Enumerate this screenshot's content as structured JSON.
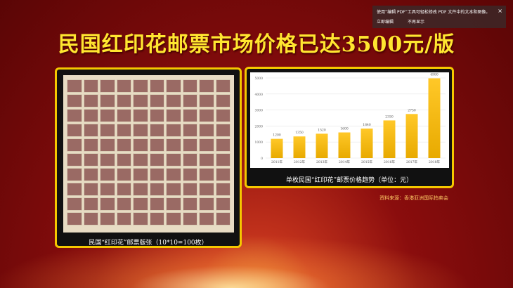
{
  "title": "民国红印花邮票市场价格已达3500元/版",
  "left_panel": {
    "caption": "民国“红印花”邮票版张（10*10=100枚）"
  },
  "right_panel": {
    "caption": "单枚民国“红印花”邮票价格趋势（单位：元）"
  },
  "source": "资料来源：香港亚洲国际拍卖会",
  "popup": {
    "message": "使用“编辑 PDF”工具可轻松修改 PDF 文件中的文本和图像。",
    "edit_now": "立即编辑",
    "dont_show": "不再显示",
    "close": "×"
  },
  "chart_data": {
    "type": "bar",
    "categories": [
      "2011年",
      "2012年",
      "2013年",
      "2014年",
      "2015年",
      "2016年",
      "2017年",
      "2018年"
    ],
    "values": [
      1200,
      1350,
      1520,
      1600,
      1840,
      2350,
      2750,
      4980
    ],
    "ylim": [
      0,
      5000
    ],
    "yticks": [
      0,
      1000,
      2000,
      3000,
      4000,
      5000
    ],
    "grid": true,
    "bar_color": "#f5bb10"
  }
}
